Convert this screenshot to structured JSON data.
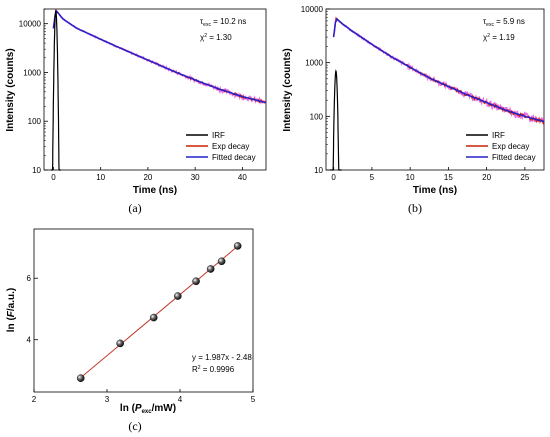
{
  "colors": {
    "irf": "#000000",
    "exp": "#cc2200",
    "fit": "#2222cc",
    "noise": "#e040e0",
    "fitline": "#c0392b"
  },
  "chart_data": [
    {
      "panel": "(a)",
      "type": "line",
      "xlabel": "Time (ns)",
      "ylabel": "Intensity (counts)",
      "xlim": [
        -2,
        45
      ],
      "ylim": [
        10,
        20000
      ],
      "yscale": "log",
      "xticks": [
        0,
        10,
        20,
        30,
        40
      ],
      "xtick_labels": [
        "0",
        "10",
        "20",
        "30",
        "40"
      ],
      "yticks": [
        10,
        100,
        1000,
        10000
      ],
      "ytick_labels": [
        "10",
        "100",
        "1000",
        "10000"
      ],
      "annotation": {
        "tau_sym": "τ",
        "tau_sub": "exc",
        "tau_val": " = 10.2 ns",
        "chi_sym": "χ",
        "chi_sup": "2",
        "chi_val": " = 1.30"
      },
      "legend": {
        "position": "bottom-right",
        "entries": [
          "IRF",
          "Exp decay",
          "Fitted decay"
        ]
      },
      "series": [
        {
          "name": "IRF",
          "peak_x": 0.5,
          "peak_y": 18000,
          "width": 0.35
        },
        {
          "name": "Exp decay",
          "x": [
            0,
            0.5,
            2,
            5,
            10,
            15,
            20,
            25,
            30,
            35,
            40,
            45
          ],
          "y": [
            8000,
            19000,
            12500,
            8000,
            4800,
            2900,
            1800,
            1100,
            700,
            460,
            320,
            240
          ]
        },
        {
          "name": "Fitted decay",
          "x": [
            0,
            0.5,
            2,
            5,
            10,
            15,
            20,
            25,
            30,
            35,
            40,
            45
          ],
          "y": [
            8000,
            19000,
            12500,
            8000,
            4800,
            2900,
            1800,
            1100,
            700,
            460,
            320,
            240
          ]
        }
      ]
    },
    {
      "panel": "(b)",
      "type": "line",
      "xlabel": "Time (ns)",
      "ylabel": "Intensity (counts)",
      "xlim": [
        -1,
        27.5
      ],
      "ylim": [
        10,
        10000
      ],
      "yscale": "log",
      "xticks": [
        0,
        5,
        10,
        15,
        20,
        25
      ],
      "xtick_labels": [
        "0",
        "5",
        "10",
        "15",
        "20",
        "25"
      ],
      "yticks": [
        10,
        100,
        1000,
        10000
      ],
      "ytick_labels": [
        "10",
        "100",
        "1000",
        "10000"
      ],
      "annotation": {
        "tau_sym": "τ",
        "tau_sub": "exc",
        "tau_val": " = 5.9 ns",
        "chi_sym": "χ",
        "chi_sup": "2",
        "chi_val": " = 1.19"
      },
      "legend": {
        "position": "bottom-right",
        "entries": [
          "IRF",
          "Exp decay",
          "Fitted decay"
        ]
      },
      "series": [
        {
          "name": "IRF",
          "peak_x": 0.3,
          "peak_y": 700,
          "width": 0.25
        },
        {
          "name": "Exp decay",
          "x": [
            0,
            0.3,
            1,
            2.5,
            5,
            7.5,
            10,
            12.5,
            15,
            17.5,
            20,
            22.5,
            25,
            27.5
          ],
          "y": [
            3000,
            6800,
            5500,
            3800,
            2200,
            1300,
            820,
            520,
            360,
            250,
            180,
            130,
            100,
            80
          ]
        },
        {
          "name": "Fitted decay",
          "x": [
            0,
            0.3,
            1,
            2.5,
            5,
            7.5,
            10,
            12.5,
            15,
            17.5,
            20,
            22.5,
            25,
            27.5
          ],
          "y": [
            3000,
            6800,
            5500,
            3800,
            2200,
            1300,
            820,
            520,
            360,
            250,
            180,
            130,
            100,
            80
          ]
        }
      ]
    },
    {
      "panel": "(c)",
      "type": "scatter",
      "xlabel_pre": "ln (",
      "xlabel_var": "P",
      "xlabel_sub": "exc",
      "xlabel_post": "/mW)",
      "ylabel_pre": "ln (",
      "ylabel_var": "F",
      "ylabel_post": "/a.u.)",
      "xlim": [
        2,
        5
      ],
      "ylim": [
        2.3,
        7.6
      ],
      "xticks": [
        2,
        3,
        4,
        5
      ],
      "xtick_labels": [
        "2",
        "3",
        "4",
        "5"
      ],
      "yticks": [
        4,
        6
      ],
      "ytick_labels": [
        "4",
        "6"
      ],
      "points": {
        "x": [
          2.64,
          3.18,
          3.64,
          3.97,
          4.22,
          4.42,
          4.57,
          4.79
        ],
        "y": [
          2.75,
          3.88,
          4.72,
          5.42,
          5.9,
          6.3,
          6.55,
          7.05
        ]
      },
      "fit": {
        "slope": 1.987,
        "intercept": -2.48,
        "x_range": [
          2.64,
          4.79
        ]
      },
      "equation": "y = 1.987x - 2.48",
      "r2_sym": "R",
      "r2_sup": "2",
      "r2_val": " = 0.9996"
    }
  ]
}
